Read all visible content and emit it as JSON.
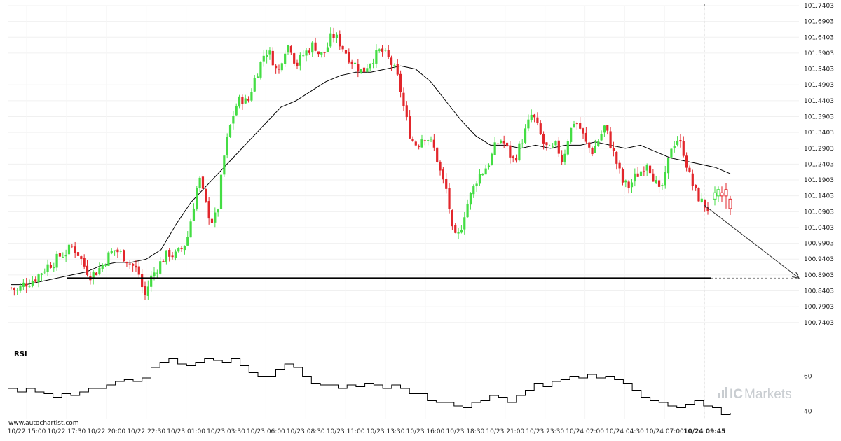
{
  "chart_data": {
    "type": "candlestick",
    "price_panel": {
      "ylim": [
        100.72,
        101.7403
      ],
      "y_ticks": [
        "101.7403",
        "101.6903",
        "101.6403",
        "101.5903",
        "101.5403",
        "101.4903",
        "101.4403",
        "101.3903",
        "101.3403",
        "101.2903",
        "101.2403",
        "101.1903",
        "101.1403",
        "101.0903",
        "101.0403",
        "100.9903",
        "100.9403",
        "100.8903",
        "100.8403",
        "100.7903",
        "100.7403"
      ],
      "x_ticks": [
        "10/22 15:00",
        "10/22 17:30",
        "10/22 20:00",
        "10/22 22:30",
        "10/23 01:00",
        "10/23 03:30",
        "10/23 06:00",
        "10/23 08:30",
        "10/23 11:00",
        "10/23 13:30",
        "10/23 16:00",
        "10/23 18:30",
        "10/23 21:00",
        "10/23 23:30",
        "10/24 02:00",
        "10/24 04:30",
        "10/24 07:00",
        "10/24 09:45"
      ],
      "close_path": [
        100.85,
        100.84,
        100.86,
        100.87,
        100.88,
        100.9,
        100.92,
        100.93,
        100.95,
        100.96,
        100.98,
        100.96,
        100.92,
        100.89,
        100.9,
        100.92,
        100.95,
        100.97,
        100.96,
        100.94,
        100.92,
        100.9,
        100.82,
        100.88,
        100.91,
        100.94,
        100.96,
        100.95,
        100.97,
        101.0,
        101.1,
        101.2,
        101.12,
        101.06,
        101.08,
        101.25,
        101.35,
        101.42,
        101.45,
        101.43,
        101.5,
        101.55,
        101.6,
        101.58,
        101.52,
        101.6,
        101.62,
        101.55,
        101.58,
        101.6,
        101.62,
        101.58,
        101.6,
        101.65,
        101.63,
        101.6,
        101.57,
        101.55,
        101.53,
        101.56,
        101.58,
        101.6,
        101.58,
        101.55,
        101.5,
        101.4,
        101.32,
        101.3,
        101.33,
        101.32,
        101.28,
        101.2,
        101.15,
        101.0,
        101.02,
        101.1,
        101.15,
        101.2,
        101.22,
        101.25,
        101.3,
        101.32,
        101.28,
        101.25,
        101.3,
        101.35,
        101.4,
        101.35,
        101.3,
        101.28,
        101.3,
        101.25,
        101.33,
        101.38,
        101.35,
        101.3,
        101.28,
        101.32,
        101.36,
        101.3,
        101.24,
        101.18,
        101.17,
        101.2,
        101.22,
        101.25,
        101.2,
        101.15,
        101.2,
        101.3,
        101.32,
        101.28,
        101.2,
        101.15,
        101.12,
        101.1
      ],
      "moving_average": [
        100.86,
        100.86,
        100.87,
        100.88,
        100.89,
        100.9,
        100.92,
        100.93,
        100.93,
        100.94,
        100.97,
        101.05,
        101.12,
        101.17,
        101.22,
        101.27,
        101.32,
        101.37,
        101.42,
        101.44,
        101.47,
        101.5,
        101.52,
        101.53,
        101.53,
        101.54,
        101.55,
        101.54,
        101.5,
        101.44,
        101.38,
        101.33,
        101.3,
        101.3,
        101.29,
        101.3,
        101.29,
        101.3,
        101.3,
        101.31,
        101.3,
        101.29,
        101.3,
        101.28,
        101.26,
        101.25,
        101.24,
        101.23,
        101.21
      ],
      "support_level": 100.8803,
      "forecast_arrow": {
        "from_time": "10/24 09:45",
        "from": 101.11,
        "to": 100.8803
      },
      "current_time_marker": "10/24 09:45"
    },
    "rsi_panel": {
      "title": "RSI",
      "ylim": [
        35,
        75
      ],
      "y_ticks": [
        "60",
        "40"
      ],
      "values": [
        53,
        51,
        53,
        51,
        50,
        48,
        50,
        49,
        51,
        53,
        53,
        55,
        57,
        58,
        57,
        59,
        65,
        68,
        70,
        67,
        66,
        68,
        70,
        69,
        68,
        70,
        66,
        62,
        60,
        60,
        64,
        67,
        65,
        60,
        56,
        55,
        55,
        53,
        55,
        54,
        56,
        55,
        53,
        55,
        53,
        50,
        50,
        46,
        45,
        45,
        43,
        42,
        45,
        46,
        49,
        48,
        45,
        49,
        52,
        56,
        54,
        57,
        58,
        60,
        59,
        61,
        59,
        60,
        58,
        56,
        52,
        48,
        46,
        45,
        43,
        42,
        44,
        46,
        43,
        42,
        38,
        39
      ]
    }
  },
  "credit": "www.autochartist.com",
  "brand": {
    "ic": "IC",
    "markets": "Markets"
  },
  "colors": {
    "up": "#44dd44",
    "down": "#e2262b",
    "ma": "#000000",
    "support": "#000000",
    "grid": "#f0f0f0"
  }
}
